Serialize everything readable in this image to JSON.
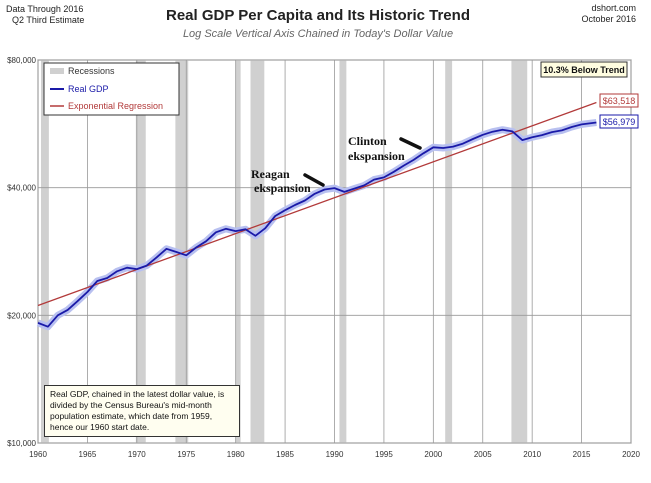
{
  "header": {
    "title": "Real GDP Per Capita and Its Historic Trend",
    "subtitle": "Log Scale Vertical Axis Chained in Today's Dollar Value",
    "left_line1": "Data Through 2016",
    "left_line2": "Q2 Third Estimate",
    "right_line1": "dshort.com",
    "right_line2": "October 2016"
  },
  "legend": {
    "recessions": "Recessions",
    "real_gdp": "Real GDP",
    "regression": "Exponential Regression"
  },
  "below_trend_label": "10.3% Below Trend",
  "note": "Real GDP, chained in the latest dollar value, is divided by the Census Bureau's mid-month population estimate, which date from 1959, hence our 1960 start date.",
  "annotations": {
    "reagan": [
      "Reagan",
      "ekspansion"
    ],
    "clinton": [
      "Clinton",
      "ekspansion"
    ]
  },
  "colors": {
    "real_gdp": "#1a1aa8",
    "real_gdp_glow": "#b8c0f0",
    "regression": "#b23a3a",
    "recession": "#d0d0d0",
    "grid": "#999999"
  },
  "chart_data": {
    "type": "line",
    "title": "Real GDP Per Capita and Its Historic Trend",
    "subtitle": "Log Scale Vertical Axis Chained in Today's Dollar Value",
    "y_scale": "log",
    "xlim": [
      1960,
      2020
    ],
    "ylim": [
      10000,
      80000
    ],
    "x_ticks": [
      1960,
      1965,
      1970,
      1975,
      1980,
      1985,
      1990,
      1995,
      2000,
      2005,
      2010,
      2015,
      2020
    ],
    "x_tick_labels": [
      "1960",
      "1965",
      "1970",
      "1975",
      "1980",
      "1985",
      "1990",
      "1995",
      "2000",
      "2005",
      "2010",
      "2015",
      "2020"
    ],
    "y_ticks": [
      10000,
      20000,
      40000,
      80000
    ],
    "y_tick_labels": [
      "$10,000",
      "$20,000",
      "$40,000",
      "$80,000"
    ],
    "recessions": [
      [
        1960.3,
        1961.1
      ],
      [
        1969.9,
        1970.9
      ],
      [
        1973.9,
        1975.2
      ],
      [
        1980.0,
        1980.5
      ],
      [
        1981.5,
        1982.9
      ],
      [
        1990.5,
        1991.2
      ],
      [
        2001.2,
        2001.9
      ],
      [
        2007.9,
        2009.5
      ]
    ],
    "series": [
      {
        "name": "Real GDP",
        "x": [
          1960,
          1961,
          1962,
          1963,
          1964,
          1965,
          1966,
          1967,
          1968,
          1969,
          1970,
          1971,
          1972,
          1973,
          1974,
          1975,
          1976,
          1977,
          1978,
          1979,
          1980,
          1981,
          1982,
          1983,
          1984,
          1985,
          1986,
          1987,
          1988,
          1989,
          1990,
          1991,
          1992,
          1993,
          1994,
          1995,
          1996,
          1997,
          1998,
          1999,
          2000,
          2001,
          2002,
          2003,
          2004,
          2005,
          2006,
          2007,
          2008,
          2009,
          2010,
          2011,
          2012,
          2013,
          2014,
          2015,
          2016.5
        ],
        "y": [
          19200,
          18800,
          20000,
          20600,
          21600,
          22700,
          24100,
          24500,
          25400,
          25900,
          25700,
          26200,
          27400,
          28700,
          28200,
          27700,
          28900,
          29900,
          31400,
          32000,
          31600,
          31900,
          30800,
          32100,
          34300,
          35400,
          36400,
          37300,
          38700,
          39600,
          39900,
          39100,
          39800,
          40500,
          41800,
          42300,
          43600,
          45100,
          46500,
          48200,
          49800,
          49600,
          50000,
          50800,
          52100,
          53300,
          54200,
          54800,
          54300,
          51800,
          52600,
          53200,
          54100,
          54600,
          55600,
          56400,
          56979
        ]
      },
      {
        "name": "Exponential Regression",
        "x": [
          1960,
          2016.5
        ],
        "y": [
          21100,
          63518
        ]
      }
    ],
    "end_labels": {
      "real_gdp": "$56,979",
      "regression": "$63,518"
    }
  }
}
